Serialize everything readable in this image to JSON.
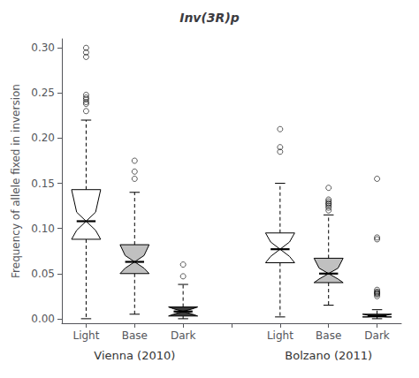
{
  "chart_data": {
    "type": "boxplot",
    "title": "Inv(3R)p",
    "ylabel": "Frequency of allele fixed in inversion",
    "categories": [
      "Light",
      "Base",
      "Dark",
      null,
      "Light",
      "Base",
      "Dark"
    ],
    "annotations": [
      "Vienna (2010)",
      "Bolzano (2011)"
    ],
    "boxes": [
      {
        "color": "#ffffff",
        "whisker_low": 0.0,
        "q1": 0.088,
        "median": 0.108,
        "q3": 0.143,
        "whisker_high": 0.22,
        "notch_low": 0.098,
        "notch_high": 0.118,
        "outliers": [
          0.23,
          0.238,
          0.24,
          0.243,
          0.245,
          0.248,
          0.29,
          0.295,
          0.3
        ]
      },
      {
        "color": "#c0c0c0",
        "whisker_low": 0.005,
        "q1": 0.05,
        "median": 0.063,
        "q3": 0.082,
        "whisker_high": 0.14,
        "notch_low": 0.056,
        "notch_high": 0.07,
        "outliers": [
          0.155,
          0.163,
          0.175
        ]
      },
      {
        "color": "#3a3a3a",
        "whisker_low": 0.0,
        "q1": 0.003,
        "median": 0.008,
        "q3": 0.013,
        "whisker_high": 0.038,
        "notch_low": 0.005,
        "notch_high": 0.011,
        "outliers": [
          0.047,
          0.06
        ]
      },
      null,
      {
        "color": "#ffffff",
        "whisker_low": 0.002,
        "q1": 0.062,
        "median": 0.077,
        "q3": 0.095,
        "whisker_high": 0.15,
        "notch_low": 0.069,
        "notch_high": 0.085,
        "outliers": [
          0.185,
          0.19,
          0.21
        ]
      },
      {
        "color": "#c0c0c0",
        "whisker_low": 0.015,
        "q1": 0.04,
        "median": 0.05,
        "q3": 0.067,
        "whisker_high": 0.115,
        "notch_low": 0.044,
        "notch_high": 0.056,
        "outliers": [
          0.12,
          0.123,
          0.125,
          0.127,
          0.128,
          0.13,
          0.132,
          0.145
        ]
      },
      {
        "color": "#3a3a3a",
        "whisker_low": 0.0,
        "q1": 0.002,
        "median": 0.003,
        "q3": 0.005,
        "whisker_high": 0.01,
        "notch_low": 0.002,
        "notch_high": 0.004,
        "outliers": [
          0.025,
          0.027,
          0.028,
          0.029,
          0.03,
          0.032,
          0.088,
          0.09,
          0.155
        ]
      }
    ],
    "ylim": [
      -0.005,
      0.31
    ],
    "yticks": [
      {
        "value": 0,
        "label": "0.00"
      },
      0.05,
      {
        "value": 0.1,
        "label": "0.10"
      },
      0.15,
      {
        "value": 0.2,
        "label": "0.20"
      },
      0.25,
      {
        "value": 0.3,
        "label": "0.30"
      }
    ],
    "grid": false
  }
}
